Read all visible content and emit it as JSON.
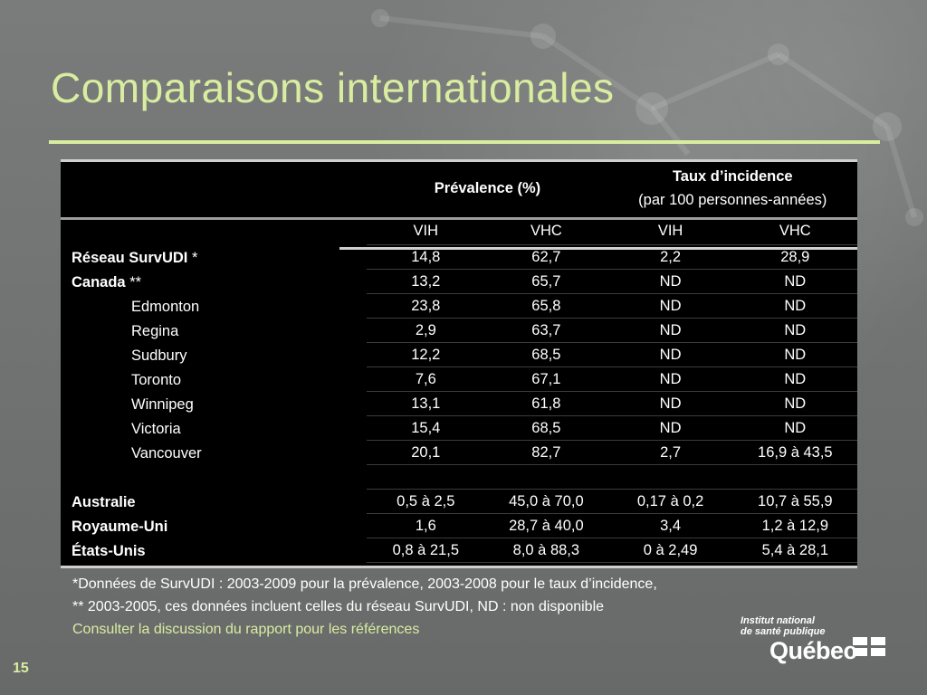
{
  "slide": {
    "title": "Comparaisons internationales",
    "page_number": "15"
  },
  "table": {
    "group_headers": {
      "prevalence": "Prévalence (%)",
      "incidence_title": "Taux d’incidence",
      "incidence_sub": "(par 100 personnes-années)"
    },
    "col_headers": [
      "VIH",
      "VHC",
      "VIH",
      "VHC"
    ],
    "rows": [
      {
        "label": "Réseau SurvUDI",
        "mark": " *",
        "bold": true,
        "indent": false,
        "values": [
          "14,8",
          "62,7",
          "2,2",
          "28,9"
        ]
      },
      {
        "label": "Canada",
        "mark": " **",
        "bold": true,
        "indent": false,
        "values": [
          "13,2",
          "65,7",
          "ND",
          "ND"
        ]
      },
      {
        "label": "Edmonton",
        "mark": "",
        "bold": false,
        "indent": true,
        "values": [
          "23,8",
          "65,8",
          "ND",
          "ND"
        ]
      },
      {
        "label": "Regina",
        "mark": "",
        "bold": false,
        "indent": true,
        "values": [
          "2,9",
          "63,7",
          "ND",
          "ND"
        ]
      },
      {
        "label": "Sudbury",
        "mark": "",
        "bold": false,
        "indent": true,
        "values": [
          "12,2",
          "68,5",
          "ND",
          "ND"
        ]
      },
      {
        "label": "Toronto",
        "mark": "",
        "bold": false,
        "indent": true,
        "values": [
          "7,6",
          "67,1",
          "ND",
          "ND"
        ]
      },
      {
        "label": "Winnipeg",
        "mark": "",
        "bold": false,
        "indent": true,
        "values": [
          "13,1",
          "61,8",
          "ND",
          "ND"
        ]
      },
      {
        "label": "Victoria",
        "mark": "",
        "bold": false,
        "indent": true,
        "values": [
          "15,4",
          "68,5",
          "ND",
          "ND"
        ]
      },
      {
        "label": "Vancouver",
        "mark": "",
        "bold": false,
        "indent": true,
        "values": [
          "20,1",
          "82,7",
          "2,7",
          "16,9 à 43,5"
        ]
      },
      {
        "label": "Australie",
        "mark": "",
        "bold": true,
        "indent": false,
        "gap_before": true,
        "values": [
          "0,5 à 2,5",
          "45,0 à 70,0",
          "0,17 à 0,2",
          "10,7 à 55,9"
        ]
      },
      {
        "label": "Royaume-Uni",
        "mark": "",
        "bold": true,
        "indent": false,
        "values": [
          "1,6",
          "28,7 à 40,0",
          "3,4",
          "1,2 à 12,9"
        ]
      },
      {
        "label": "États-Unis",
        "mark": "",
        "bold": true,
        "indent": false,
        "values": [
          "0,8 à 21,5",
          "8,0 à 88,3",
          "0 à 2,49",
          "5,4 à 28,1"
        ]
      }
    ]
  },
  "notes": {
    "line1": "*Données de SurvUDI : 2003-2009 pour la prévalence, 2003-2008 pour le taux d’incidence,",
    "line2": "** 2003-2005, ces données incluent celles du réseau SurvUDI, ND : non disponible",
    "link": "Consulter la discussion du rapport pour les références"
  },
  "logo": {
    "line1": "Institut national",
    "line2": "de santé publique",
    "brand": "Québec"
  },
  "colors": {
    "accent": "#d8eda0",
    "background": "#6d6f6f",
    "table_bg": "#000000"
  }
}
